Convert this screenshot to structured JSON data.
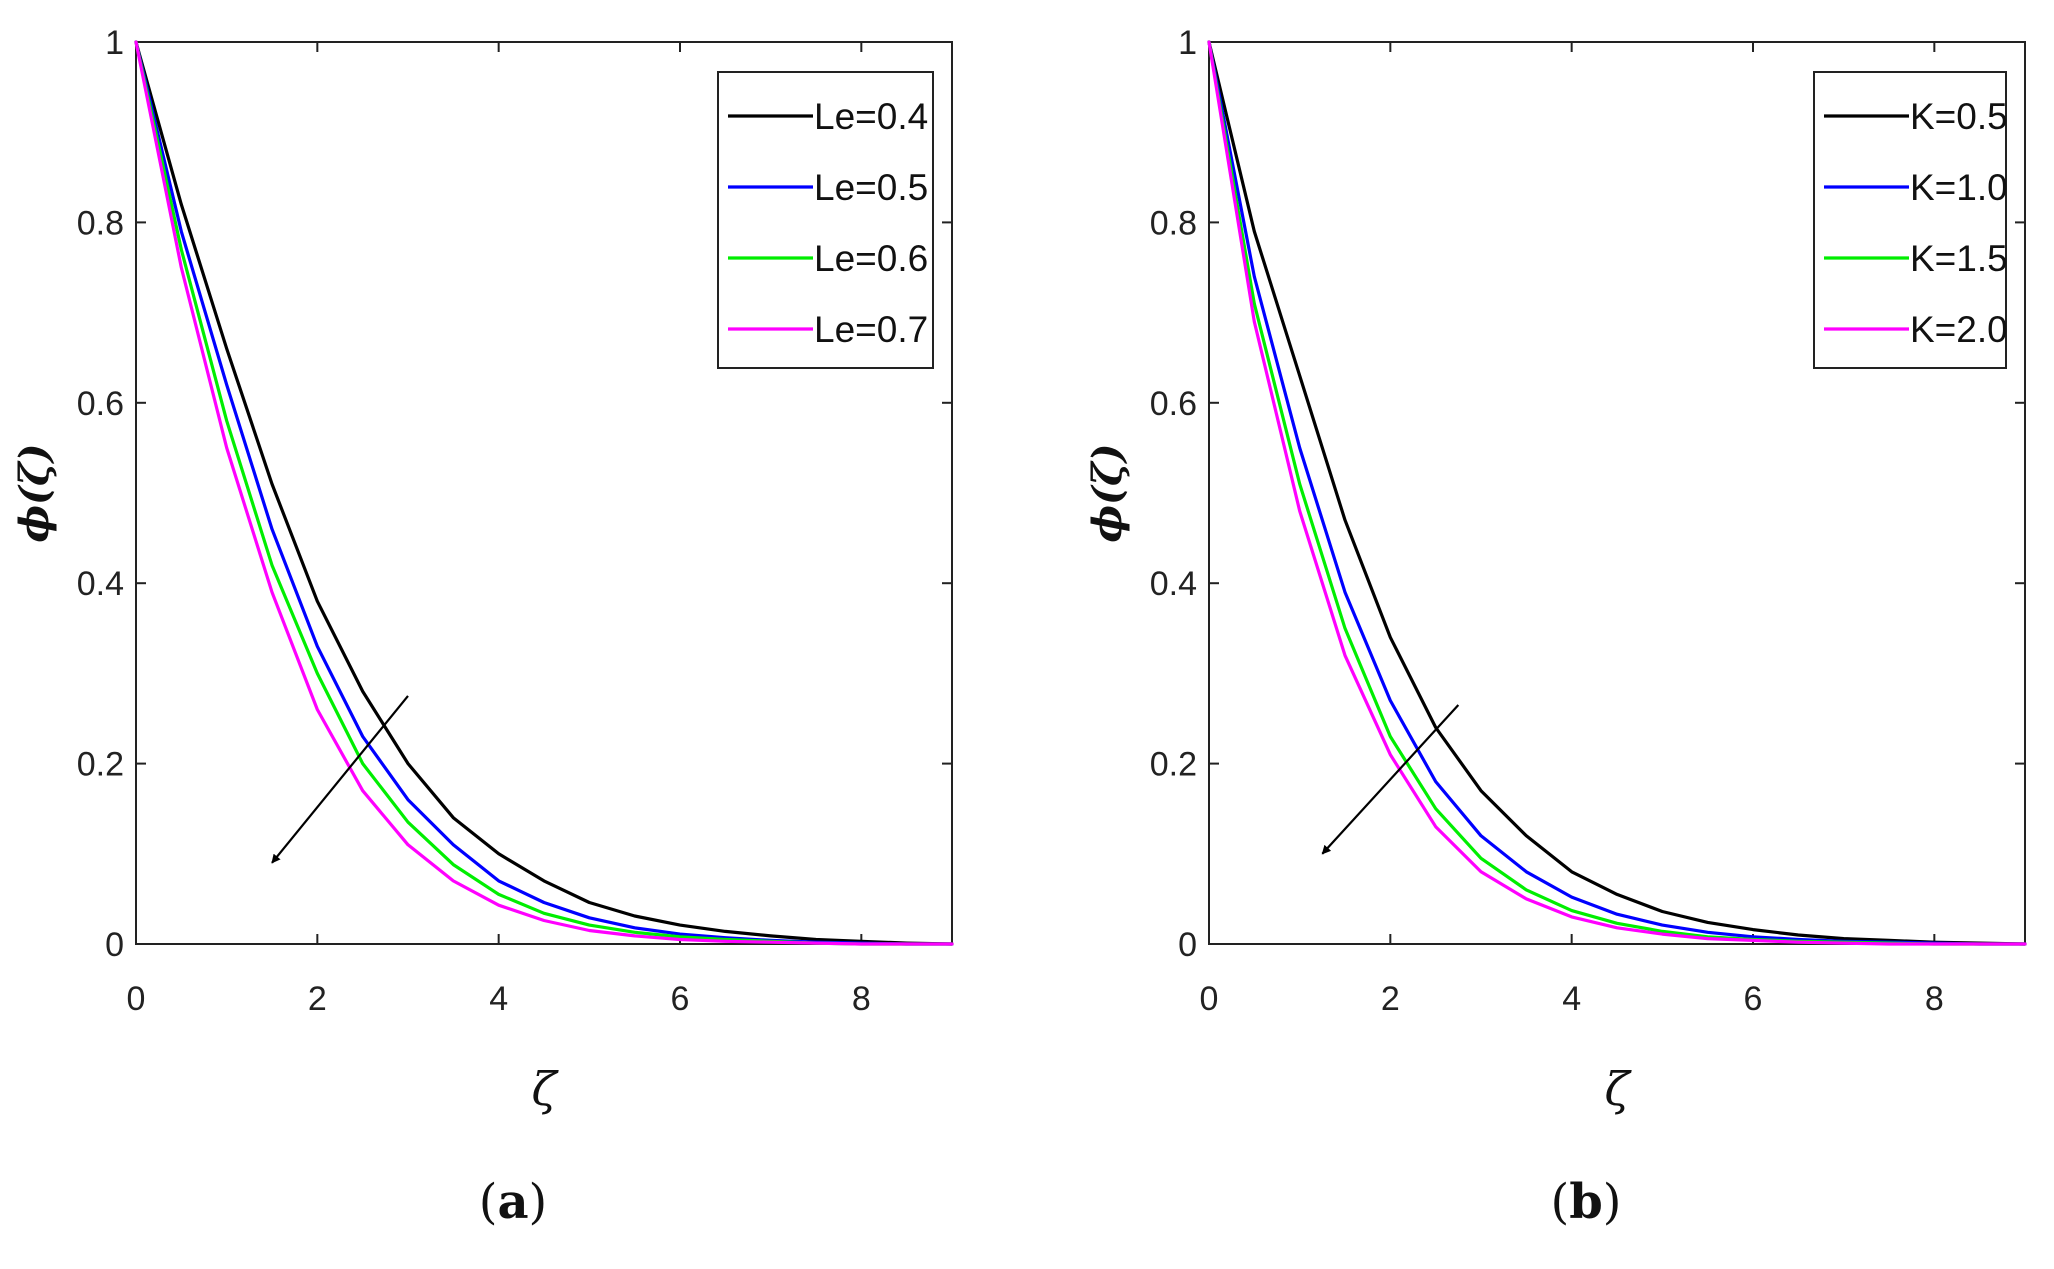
{
  "chart_data": [
    {
      "type": "line",
      "panel": "a",
      "panel_label_open": "(",
      "panel_label_letter": "a",
      "panel_label_close": ")",
      "xlabel": "ζ",
      "ylabel": "ϕ(ζ)",
      "xlim": [
        0,
        9
      ],
      "ylim": [
        0,
        1
      ],
      "xticks": [
        0,
        2,
        4,
        6,
        8
      ],
      "yticks": [
        0,
        0.2,
        0.4,
        0.6,
        0.8,
        1
      ],
      "ytick_labels": [
        "0",
        "0.2",
        "0.4",
        "0.6",
        "0.8",
        "1"
      ],
      "legend_position": "top-right",
      "annotation": {
        "type": "arrow",
        "from": [
          3.0,
          0.275
        ],
        "to": [
          1.5,
          0.09
        ],
        "meaning": "increasing parameter"
      },
      "series": [
        {
          "name": "Le=0.4",
          "color": "#000000",
          "x": [
            0,
            0.5,
            1,
            1.5,
            2,
            2.5,
            3,
            3.5,
            4,
            4.5,
            5,
            5.5,
            6,
            6.5,
            7,
            7.5,
            8,
            8.5,
            9
          ],
          "y": [
            1.0,
            0.82,
            0.66,
            0.51,
            0.38,
            0.28,
            0.2,
            0.14,
            0.1,
            0.07,
            0.046,
            0.031,
            0.021,
            0.014,
            0.009,
            0.005,
            0.003,
            0.001,
            0.0
          ]
        },
        {
          "name": "Le=0.5",
          "color": "#0000ff",
          "x": [
            0,
            0.5,
            1,
            1.5,
            2,
            2.5,
            3,
            3.5,
            4,
            4.5,
            5,
            5.5,
            6,
            6.5,
            7,
            7.5,
            8,
            8.5,
            9
          ],
          "y": [
            1.0,
            0.79,
            0.62,
            0.46,
            0.33,
            0.23,
            0.16,
            0.11,
            0.07,
            0.046,
            0.029,
            0.018,
            0.011,
            0.007,
            0.004,
            0.002,
            0.001,
            0.0,
            0.0
          ]
        },
        {
          "name": "Le=0.6",
          "color": "#00ee00",
          "x": [
            0,
            0.5,
            1,
            1.5,
            2,
            2.5,
            3,
            3.5,
            4,
            4.5,
            5,
            5.5,
            6,
            6.5,
            7,
            7.5,
            8,
            8.5,
            9
          ],
          "y": [
            1.0,
            0.77,
            0.58,
            0.42,
            0.3,
            0.2,
            0.135,
            0.088,
            0.055,
            0.034,
            0.021,
            0.013,
            0.008,
            0.005,
            0.003,
            0.001,
            0.0,
            0.0,
            0.0
          ]
        },
        {
          "name": "Le=0.7",
          "color": "#ff00ff",
          "x": [
            0,
            0.5,
            1,
            1.5,
            2,
            2.5,
            3,
            3.5,
            4,
            4.5,
            5,
            5.5,
            6,
            6.5,
            7,
            7.5,
            8,
            8.5,
            9
          ],
          "y": [
            1.0,
            0.75,
            0.55,
            0.39,
            0.26,
            0.17,
            0.11,
            0.07,
            0.043,
            0.026,
            0.015,
            0.009,
            0.005,
            0.003,
            0.002,
            0.001,
            0.0,
            0.0,
            0.0
          ]
        }
      ]
    },
    {
      "type": "line",
      "panel": "b",
      "panel_label_open": "(",
      "panel_label_letter": "b",
      "panel_label_close": ")",
      "xlabel": "ζ",
      "ylabel": "ϕ(ζ)",
      "xlim": [
        0,
        9
      ],
      "ylim": [
        0,
        1
      ],
      "xticks": [
        0,
        2,
        4,
        6,
        8
      ],
      "yticks": [
        0,
        0.2,
        0.4,
        0.6,
        0.8,
        1
      ],
      "ytick_labels": [
        "0",
        "0.2",
        "0.4",
        "0.6",
        "0.8",
        "1"
      ],
      "legend_position": "top-right",
      "annotation": {
        "type": "arrow",
        "from": [
          2.75,
          0.265
        ],
        "to": [
          1.25,
          0.1
        ],
        "meaning": "increasing parameter"
      },
      "series": [
        {
          "name": "K=0.5",
          "color": "#000000",
          "x": [
            0,
            0.5,
            1,
            1.5,
            2,
            2.5,
            3,
            3.5,
            4,
            4.5,
            5,
            5.5,
            6,
            6.5,
            7,
            7.5,
            8,
            8.5,
            9
          ],
          "y": [
            1.0,
            0.79,
            0.63,
            0.47,
            0.34,
            0.24,
            0.17,
            0.12,
            0.08,
            0.055,
            0.036,
            0.024,
            0.016,
            0.01,
            0.006,
            0.004,
            0.002,
            0.001,
            0.0
          ]
        },
        {
          "name": "K=1.0",
          "color": "#0000ff",
          "x": [
            0,
            0.5,
            1,
            1.5,
            2,
            2.5,
            3,
            3.5,
            4,
            4.5,
            5,
            5.5,
            6,
            6.5,
            7,
            7.5,
            8,
            8.5,
            9
          ],
          "y": [
            1.0,
            0.74,
            0.55,
            0.39,
            0.27,
            0.18,
            0.12,
            0.08,
            0.052,
            0.033,
            0.021,
            0.013,
            0.008,
            0.005,
            0.003,
            0.002,
            0.001,
            0.0,
            0.0
          ]
        },
        {
          "name": "K=1.5",
          "color": "#00ee00",
          "x": [
            0,
            0.5,
            1,
            1.5,
            2,
            2.5,
            3,
            3.5,
            4,
            4.5,
            5,
            5.5,
            6,
            6.5,
            7,
            7.5,
            8,
            8.5,
            9
          ],
          "y": [
            1.0,
            0.71,
            0.51,
            0.35,
            0.23,
            0.15,
            0.095,
            0.06,
            0.037,
            0.023,
            0.014,
            0.008,
            0.005,
            0.003,
            0.002,
            0.001,
            0.0,
            0.0,
            0.0
          ]
        },
        {
          "name": "K=2.0",
          "color": "#ff00ff",
          "x": [
            0,
            0.5,
            1,
            1.5,
            2,
            2.5,
            3,
            3.5,
            4,
            4.5,
            5,
            5.5,
            6,
            6.5,
            7,
            7.5,
            8,
            8.5,
            9
          ],
          "y": [
            1.0,
            0.69,
            0.48,
            0.32,
            0.21,
            0.13,
            0.08,
            0.05,
            0.03,
            0.018,
            0.011,
            0.006,
            0.004,
            0.002,
            0.001,
            0.0,
            0.0,
            0.0,
            0.0
          ]
        }
      ]
    }
  ]
}
